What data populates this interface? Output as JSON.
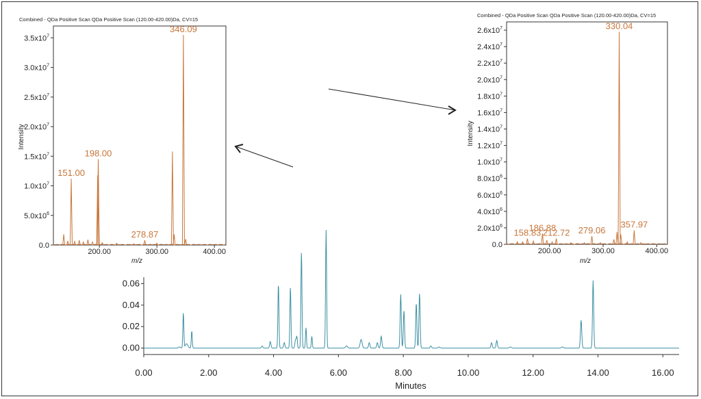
{
  "colors": {
    "chromatogram": "#3a8fa3",
    "spectrum": "#c8763a",
    "axis": "#333333",
    "arrow": "#222222"
  },
  "chart_data": [
    {
      "id": "chromatogram",
      "type": "line",
      "title": "",
      "xlabel": "Minutes",
      "ylabel": "",
      "xlim": [
        0,
        16.5
      ],
      "ylim": [
        -0.006,
        0.066
      ],
      "xticks": [
        "0.00",
        "2.00",
        "4.00",
        "6.00",
        "8.00",
        "10.00",
        "12.00",
        "14.00",
        "16.00"
      ],
      "xtick_values": [
        0,
        2,
        4,
        6,
        8,
        10,
        12,
        14,
        16
      ],
      "yticks": [
        "0.00",
        "0.02",
        "0.04",
        "0.06"
      ],
      "ytick_values": [
        0,
        0.02,
        0.04,
        0.06
      ],
      "peaks": [
        {
          "t": 1.1,
          "h": 0.001,
          "w": 0.03
        },
        {
          "t": 1.22,
          "h": 0.033,
          "w": 0.015
        },
        {
          "t": 1.32,
          "h": 0.004,
          "w": 0.04
        },
        {
          "t": 1.48,
          "h": 0.016,
          "w": 0.015
        },
        {
          "t": 3.65,
          "h": 0.002,
          "w": 0.02
        },
        {
          "t": 3.9,
          "h": 0.006,
          "w": 0.02
        },
        {
          "t": 4.15,
          "h": 0.06,
          "w": 0.016
        },
        {
          "t": 4.33,
          "h": 0.005,
          "w": 0.02
        },
        {
          "t": 4.52,
          "h": 0.057,
          "w": 0.016
        },
        {
          "t": 4.68,
          "h": 0.008,
          "w": 0.02
        },
        {
          "t": 4.72,
          "h": 0.01,
          "w": 0.015
        },
        {
          "t": 4.86,
          "h": 0.09,
          "w": 0.016
        },
        {
          "t": 5.0,
          "h": 0.019,
          "w": 0.015
        },
        {
          "t": 5.18,
          "h": 0.011,
          "w": 0.015
        },
        {
          "t": 5.62,
          "h": 0.11,
          "w": 0.016
        },
        {
          "t": 6.25,
          "h": 0.002,
          "w": 0.03
        },
        {
          "t": 6.7,
          "h": 0.008,
          "w": 0.03
        },
        {
          "t": 6.95,
          "h": 0.005,
          "w": 0.02
        },
        {
          "t": 7.2,
          "h": 0.005,
          "w": 0.02
        },
        {
          "t": 7.32,
          "h": 0.011,
          "w": 0.02
        },
        {
          "t": 7.92,
          "h": 0.05,
          "w": 0.018
        },
        {
          "t": 8.02,
          "h": 0.035,
          "w": 0.018
        },
        {
          "t": 8.4,
          "h": 0.042,
          "w": 0.018
        },
        {
          "t": 8.5,
          "h": 0.051,
          "w": 0.018
        },
        {
          "t": 8.85,
          "h": 0.002,
          "w": 0.02
        },
        {
          "t": 9.1,
          "h": 0.001,
          "w": 0.03
        },
        {
          "t": 10.72,
          "h": 0.005,
          "w": 0.02
        },
        {
          "t": 10.88,
          "h": 0.007,
          "w": 0.02
        },
        {
          "t": 11.3,
          "h": 0.001,
          "w": 0.03
        },
        {
          "t": 12.9,
          "h": 0.001,
          "w": 0.03
        },
        {
          "t": 13.48,
          "h": 0.026,
          "w": 0.02
        },
        {
          "t": 13.85,
          "h": 0.063,
          "w": 0.018
        }
      ],
      "clip_top": 0.066
    },
    {
      "id": "spectrum-left",
      "type": "bar",
      "title": "Combined - QDa Positive Scan QDa Positive Scan (120.00-420.00)Da, CV=15",
      "xlabel": "m/z",
      "ylabel": "Intensity",
      "xlim": [
        120,
        420
      ],
      "ylim": [
        0,
        37000000
      ],
      "xticks": [
        "200.00",
        "300.00",
        "400.00"
      ],
      "xtick_values": [
        200,
        300,
        400
      ],
      "yticks": [
        {
          "v": 0,
          "m": "0.0",
          "e": ""
        },
        {
          "v": 5000000,
          "m": "5.0x10",
          "e": "6"
        },
        {
          "v": 10000000,
          "m": "1.0x10",
          "e": "7"
        },
        {
          "v": 15000000,
          "m": "1.5x10",
          "e": "7"
        },
        {
          "v": 20000000,
          "m": "2.0x10",
          "e": "7"
        },
        {
          "v": 25000000,
          "m": "2.5x10",
          "e": "7"
        },
        {
          "v": 30000000,
          "m": "3.0x10",
          "e": "7"
        },
        {
          "v": 35000000,
          "m": "3.5x10",
          "e": "7"
        }
      ],
      "peaks": [
        {
          "mz": 138,
          "i": 1800000
        },
        {
          "mz": 145,
          "i": 700000
        },
        {
          "mz": 151.0,
          "i": 11200000
        },
        {
          "mz": 157,
          "i": 600000
        },
        {
          "mz": 165,
          "i": 800000
        },
        {
          "mz": 172,
          "i": 500000
        },
        {
          "mz": 180,
          "i": 900000
        },
        {
          "mz": 188,
          "i": 500000
        },
        {
          "mz": 197,
          "i": 11800000
        },
        {
          "mz": 198.0,
          "i": 14500000
        },
        {
          "mz": 205,
          "i": 400000
        },
        {
          "mz": 230,
          "i": 300000
        },
        {
          "mz": 260,
          "i": 200000
        },
        {
          "mz": 278.87,
          "i": 800000
        },
        {
          "mz": 300,
          "i": 300000
        },
        {
          "mz": 327,
          "i": 15800000
        },
        {
          "mz": 330,
          "i": 1800000
        },
        {
          "mz": 346.09,
          "i": 35500000
        },
        {
          "mz": 350,
          "i": 1000000
        }
      ],
      "labels": [
        {
          "mz": 151.0,
          "text": "151.00",
          "i": 11200000
        },
        {
          "mz": 198.0,
          "text": "198.00",
          "i": 14500000
        },
        {
          "mz": 278.87,
          "text": "278.87",
          "i": 800000
        },
        {
          "mz": 346.09,
          "text": "346.09",
          "i": 35500000
        }
      ]
    },
    {
      "id": "spectrum-right",
      "type": "bar",
      "title": "Combined - QDa Positive Scan QDa Positive Scan (120.00-420.00)Da, CV=15",
      "xlabel": "m/z",
      "ylabel": "Intensity",
      "xlim": [
        120,
        420
      ],
      "ylim": [
        0,
        27000000
      ],
      "xticks": [
        "200.00",
        "300.00",
        "400.00"
      ],
      "xtick_values": [
        200,
        300,
        400
      ],
      "yticks": [
        {
          "v": 0,
          "m": "0.0",
          "e": ""
        },
        {
          "v": 2000000,
          "m": "2.0x10",
          "e": "6"
        },
        {
          "v": 4000000,
          "m": "4.0x10",
          "e": "6"
        },
        {
          "v": 6000000,
          "m": "6.0x10",
          "e": "6"
        },
        {
          "v": 8000000,
          "m": "8.0x10",
          "e": "6"
        },
        {
          "v": 10000000,
          "m": "1.0x10",
          "e": "7"
        },
        {
          "v": 12000000,
          "m": "1.2x10",
          "e": "7"
        },
        {
          "v": 14000000,
          "m": "1.4x10",
          "e": "7"
        },
        {
          "v": 16000000,
          "m": "1.6x10",
          "e": "7"
        },
        {
          "v": 18000000,
          "m": "1.8x10",
          "e": "7"
        },
        {
          "v": 20000000,
          "m": "2.0x10",
          "e": "7"
        },
        {
          "v": 22000000,
          "m": "2.2x10",
          "e": "7"
        },
        {
          "v": 24000000,
          "m": "2.4x10",
          "e": "7"
        },
        {
          "v": 26000000,
          "m": "2.6x10",
          "e": "7"
        }
      ],
      "peaks": [
        {
          "mz": 140,
          "i": 300000
        },
        {
          "mz": 150,
          "i": 300000
        },
        {
          "mz": 158.83,
          "i": 700000
        },
        {
          "mz": 170,
          "i": 400000
        },
        {
          "mz": 186.88,
          "i": 1300000
        },
        {
          "mz": 195,
          "i": 500000
        },
        {
          "mz": 205,
          "i": 300000
        },
        {
          "mz": 212.72,
          "i": 700000
        },
        {
          "mz": 240,
          "i": 200000
        },
        {
          "mz": 265,
          "i": 200000
        },
        {
          "mz": 279.06,
          "i": 1000000
        },
        {
          "mz": 295,
          "i": 200000
        },
        {
          "mz": 320,
          "i": 600000
        },
        {
          "mz": 326,
          "i": 1500000
        },
        {
          "mz": 330.04,
          "i": 25800000
        },
        {
          "mz": 333,
          "i": 1200000
        },
        {
          "mz": 345,
          "i": 300000
        },
        {
          "mz": 357.97,
          "i": 1700000
        },
        {
          "mz": 370,
          "i": 200000
        }
      ],
      "labels": [
        {
          "mz": 158.83,
          "text": "158.83",
          "i": 700000
        },
        {
          "mz": 186.88,
          "text": "186.88",
          "i": 1300000
        },
        {
          "mz": 212.72,
          "text": "212.72",
          "i": 700000
        },
        {
          "mz": 279.06,
          "text": "279.06",
          "i": 1000000
        },
        {
          "mz": 330.04,
          "text": "330.04",
          "i": 25800000
        },
        {
          "mz": 357.97,
          "text": "357.97",
          "i": 1700000
        }
      ]
    }
  ]
}
